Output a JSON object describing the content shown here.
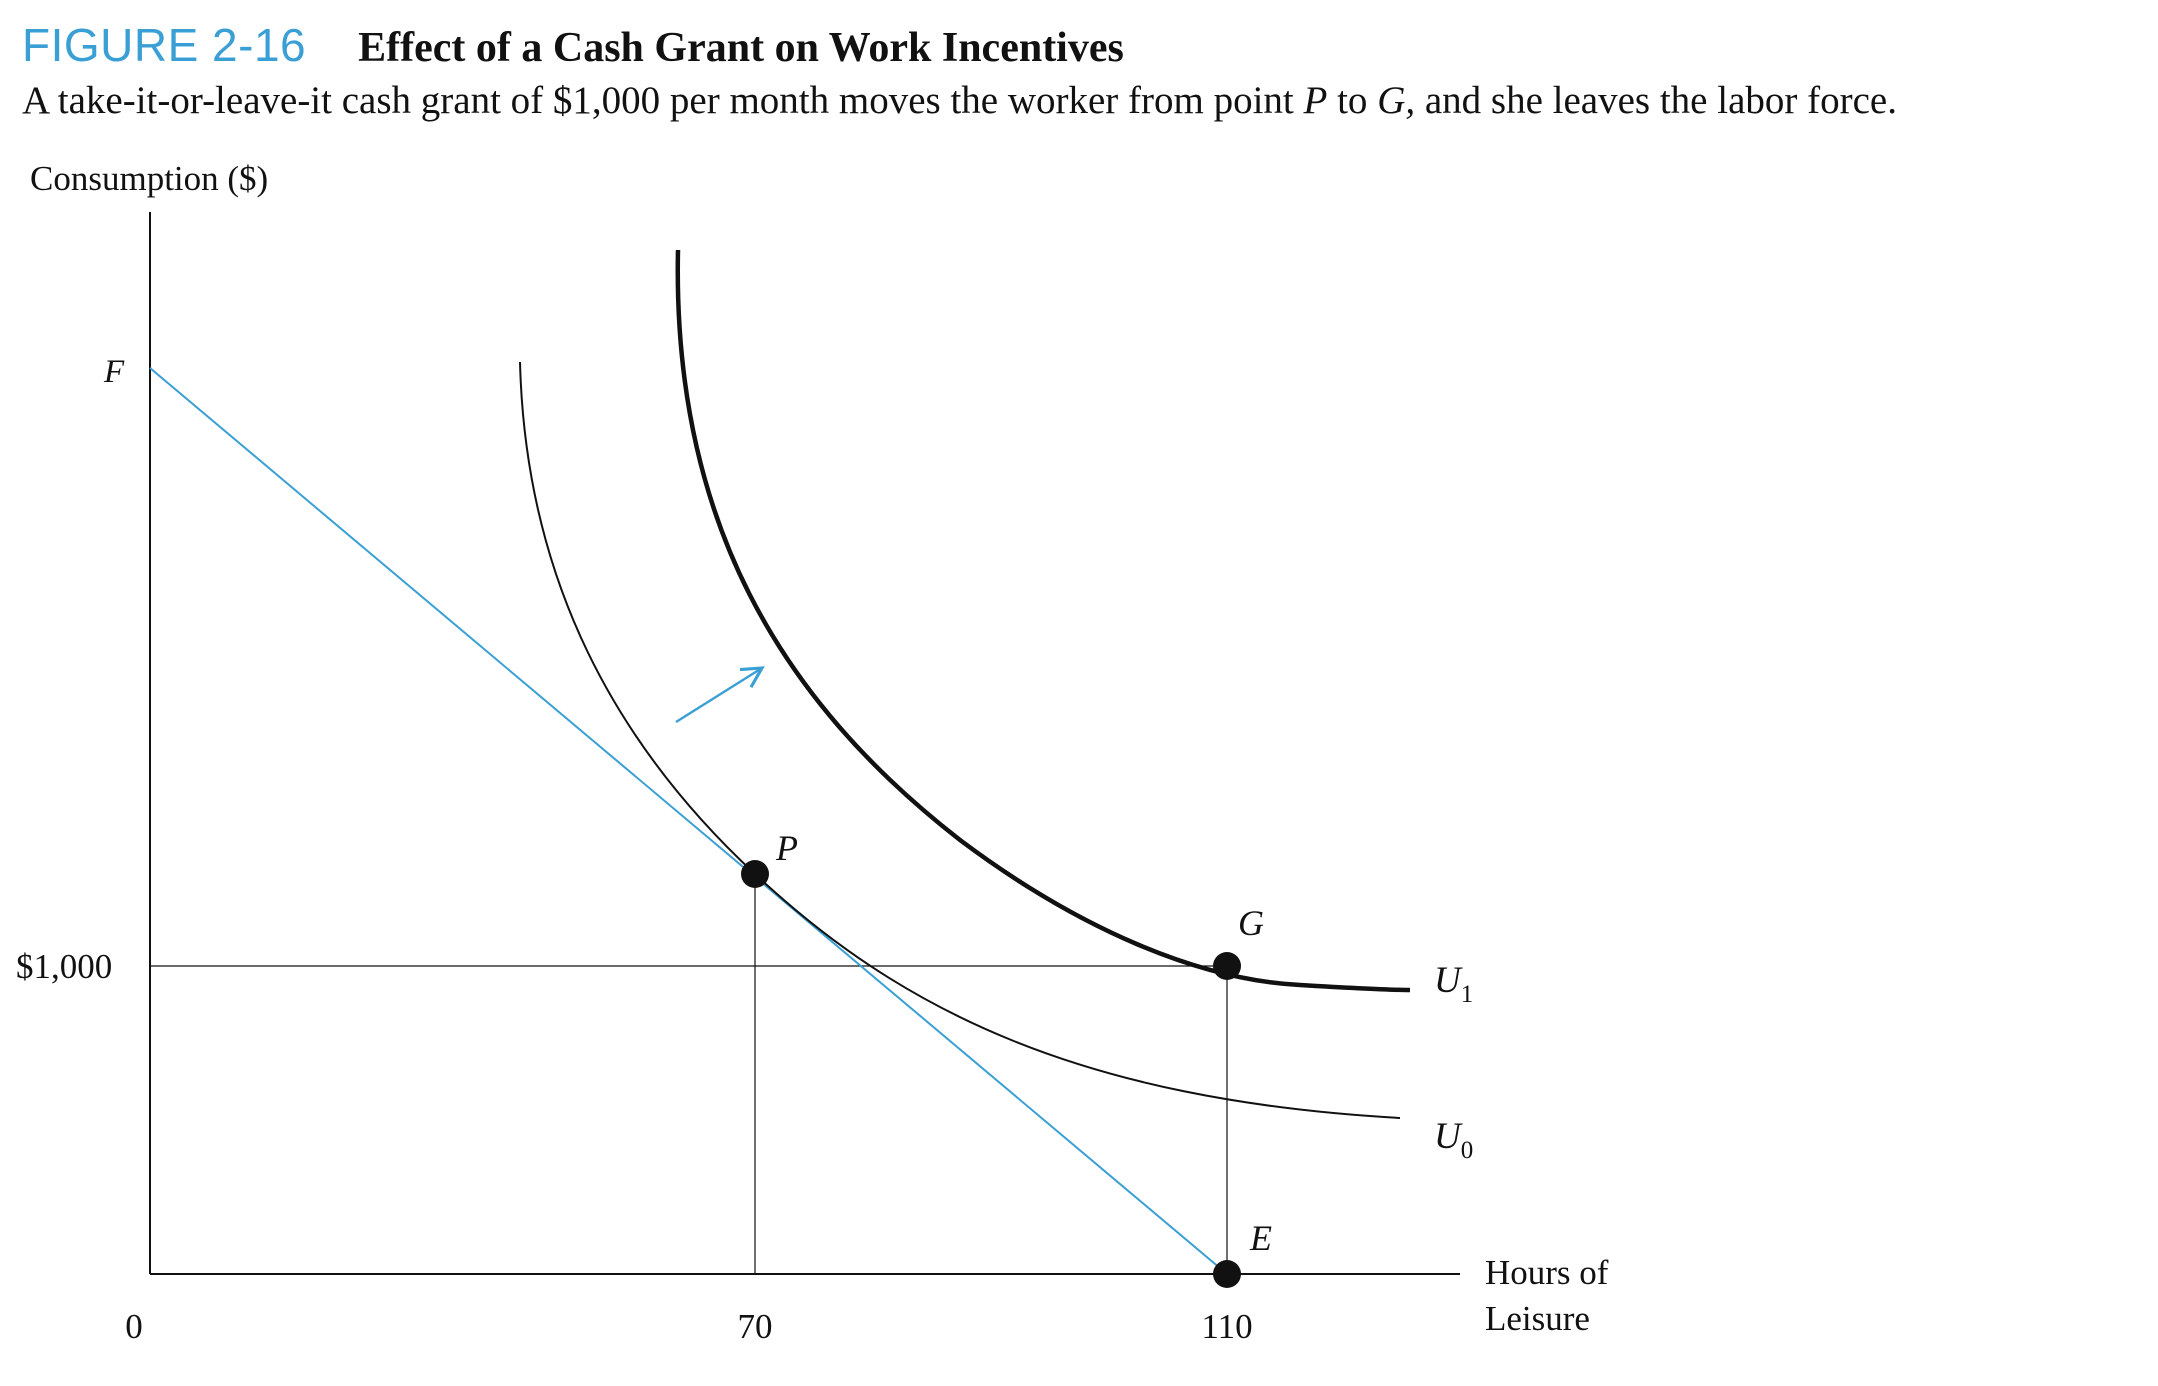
{
  "figure": {
    "label": "FIGURE 2-16",
    "title": "Effect of a Cash Grant on Work Incentives",
    "caption_parts": {
      "a": "A take-it-or-leave-it cash grant of $1,000 per month moves the worker from point ",
      "p": "P",
      "b": " to ",
      "g": "G,",
      "c": " and she leaves the labor force."
    }
  },
  "chart_data": {
    "type": "line",
    "title": "Effect of a Cash Grant on Work Incentives",
    "xlabel": "Hours of Leisure",
    "ylabel": "Consumption ($)",
    "xlabel_lines": [
      "Hours of",
      "Leisure"
    ],
    "x_ticks": [
      {
        "value": 0,
        "label": "0"
      },
      {
        "value": 70,
        "label": "70"
      },
      {
        "value": 110,
        "label": "110"
      }
    ],
    "y_ticks": [
      {
        "value": 1000,
        "label": "$1,000"
      }
    ],
    "xlim": [
      0,
      130
    ],
    "ylim": [
      0,
      3600
    ],
    "grid": false,
    "colors": {
      "budget_line": "#3a9fd4",
      "curves": "#111111",
      "arrow": "#3a9fd4"
    },
    "budget_line": {
      "name": "",
      "points": [
        [
          0,
          2950
        ],
        [
          110,
          0
        ]
      ]
    },
    "indifference_curves": [
      {
        "name": "U0",
        "label_main": "U",
        "label_sub": "0",
        "points": [
          [
            39,
            3000
          ],
          [
            46,
            2080
          ],
          [
            56,
            1350
          ],
          [
            70,
            1350
          ],
          [
            110,
            550
          ],
          [
            125,
            510
          ]
        ]
      },
      {
        "name": "U1",
        "label_main": "U",
        "label_sub": "1",
        "points": [
          [
            52,
            3350
          ],
          [
            60,
            2250
          ],
          [
            75,
            1600
          ],
          [
            90,
            1230
          ],
          [
            110,
            1000
          ],
          [
            125,
            950
          ]
        ]
      }
    ],
    "points": [
      {
        "name": "P",
        "x": 70,
        "y": 1300
      },
      {
        "name": "G",
        "x": 110,
        "y": 1000
      },
      {
        "name": "E",
        "x": 110,
        "y": 0
      }
    ],
    "annotations": [
      {
        "name": "F",
        "x": 0,
        "y": 2950
      }
    ]
  }
}
